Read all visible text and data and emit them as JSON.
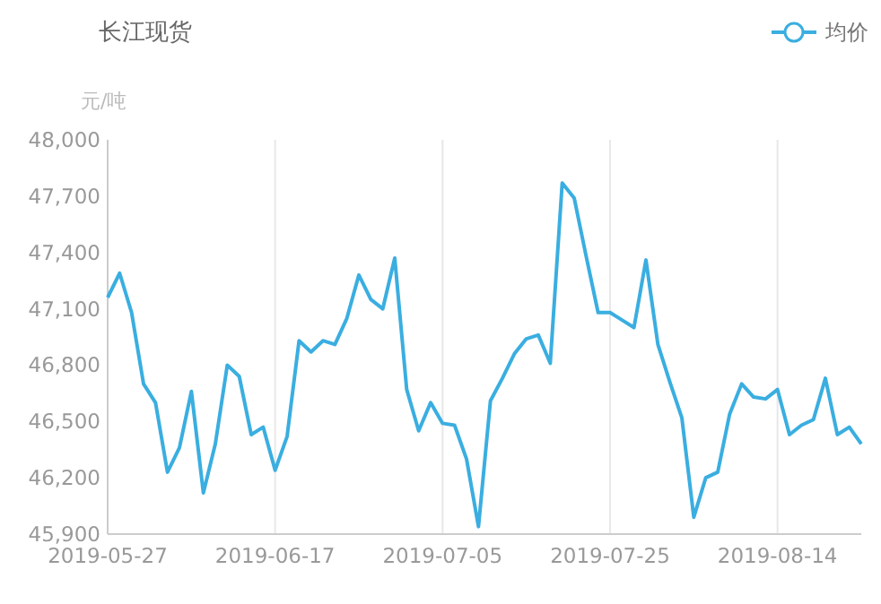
{
  "chart_data": {
    "type": "line",
    "title": "长江现货",
    "ylabel": "元/吨",
    "categories": [
      "2019-05-27",
      null,
      null,
      null,
      null,
      null,
      null,
      null,
      null,
      null,
      null,
      null,
      null,
      null,
      "2019-06-17",
      null,
      null,
      null,
      null,
      null,
      null,
      null,
      null,
      null,
      null,
      null,
      null,
      null,
      "2019-07-05",
      null,
      null,
      null,
      null,
      null,
      null,
      null,
      null,
      null,
      null,
      null,
      null,
      null,
      "2019-07-25",
      null,
      null,
      null,
      null,
      null,
      null,
      null,
      null,
      null,
      null,
      null,
      null,
      null,
      "2019-08-14",
      null,
      null,
      null,
      null,
      null,
      null,
      null
    ],
    "series": [
      {
        "name": "均价",
        "color": "#3aaee0",
        "values": [
          47160,
          47290,
          47080,
          46700,
          46600,
          46230,
          46360,
          46660,
          46120,
          46380,
          46800,
          46740,
          46430,
          46470,
          46240,
          46420,
          46930,
          46870,
          46930,
          46910,
          47050,
          47280,
          47150,
          47100,
          47370,
          46670,
          46450,
          46600,
          46490,
          46480,
          46300,
          45940,
          46610,
          46730,
          46860,
          46940,
          46960,
          46810,
          47770,
          47690,
          47380,
          47080,
          47080,
          47040,
          47000,
          47360,
          46910,
          46710,
          46520,
          45990,
          46200,
          46230,
          46540,
          46700,
          46630,
          46620,
          46670,
          46430,
          46480,
          46510,
          46730,
          46430,
          46470,
          46380
        ]
      }
    ],
    "ylim": [
      45900,
      48000
    ],
    "yticks": [
      {
        "value": 45900,
        "label": "45,900"
      },
      {
        "value": 46200,
        "label": "46,200"
      },
      {
        "value": 46500,
        "label": "46,500"
      },
      {
        "value": 46800,
        "label": "46,800"
      },
      {
        "value": 47100,
        "label": "47,100"
      },
      {
        "value": 47400,
        "label": "47,400"
      },
      {
        "value": 47700,
        "label": "47,700"
      },
      {
        "value": 48000,
        "label": "48,000"
      }
    ],
    "grid": "x",
    "legend": "top right",
    "marker": "none",
    "line_style": "solid"
  }
}
